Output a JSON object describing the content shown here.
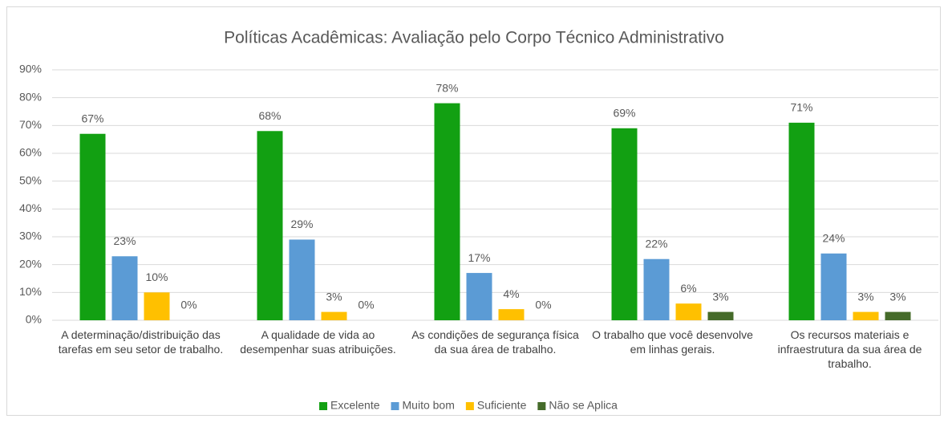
{
  "chart_data": {
    "type": "bar",
    "title": "Políticas Acadêmicas: Avaliação pelo Corpo Técnico Administrativo",
    "categories": [
      "A determinação/distribuição das tarefas em seu setor de trabalho.",
      "A qualidade de vida ao desempenhar suas atribuições.",
      "As condições de segurança física da sua área de trabalho.",
      "O trabalho que você desenvolve em linhas gerais.",
      "Os recursos materiais e infraestrutura da sua área de trabalho."
    ],
    "series": [
      {
        "name": "Excelente",
        "color": "#12a012",
        "values": [
          67,
          68,
          78,
          69,
          71
        ],
        "value_labels": [
          "67%",
          "68%",
          "78%",
          "69%",
          "71%"
        ]
      },
      {
        "name": "Muito bom",
        "color": "#5b9bd5",
        "values": [
          23,
          29,
          17,
          22,
          24
        ],
        "value_labels": [
          "23%",
          "29%",
          "17%",
          "22%",
          "24%"
        ]
      },
      {
        "name": "Suficiente",
        "color": "#ffc000",
        "values": [
          10,
          3,
          4,
          6,
          3
        ],
        "value_labels": [
          "10%",
          "3%",
          "4%",
          "6%",
          "3%"
        ]
      },
      {
        "name": "Não se Aplica",
        "color": "#456b2a",
        "values": [
          0,
          0,
          0,
          3,
          3
        ],
        "value_labels": [
          "0%",
          "0%",
          "0%",
          "3%",
          "3%"
        ]
      }
    ],
    "ylim": [
      0,
      90
    ],
    "yticks": [
      {
        "value": 0,
        "label": "0%"
      },
      {
        "value": 10,
        "label": "10%"
      },
      {
        "value": 20,
        "label": "20%"
      },
      {
        "value": 30,
        "label": "30%"
      },
      {
        "value": 40,
        "label": "40%"
      },
      {
        "value": 50,
        "label": "50%"
      },
      {
        "value": 60,
        "label": "60%"
      },
      {
        "value": 70,
        "label": "70%"
      },
      {
        "value": 80,
        "label": "80%"
      },
      {
        "value": 90,
        "label": "90%"
      }
    ],
    "grid": true,
    "legend": "bottom"
  }
}
